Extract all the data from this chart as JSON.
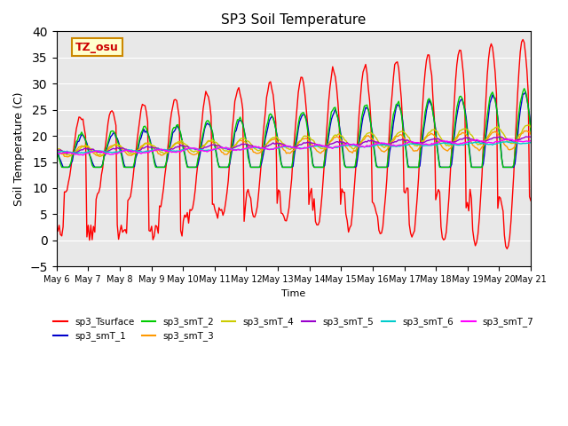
{
  "title": "SP3 Soil Temperature",
  "ylabel": "Soil Temperature (C)",
  "xlabel": "Time",
  "ylim": [
    -5,
    40
  ],
  "annotation": "TZ_osu",
  "bg_color": "#e8e8e8",
  "legend": [
    {
      "label": "sp3_Tsurface",
      "color": "#ff0000"
    },
    {
      "label": "sp3_smT_1",
      "color": "#0000cc"
    },
    {
      "label": "sp3_smT_2",
      "color": "#00cc00"
    },
    {
      "label": "sp3_smT_3",
      "color": "#ff9900"
    },
    {
      "label": "sp3_smT_4",
      "color": "#cccc00"
    },
    {
      "label": "sp3_smT_5",
      "color": "#9900cc"
    },
    {
      "label": "sp3_smT_6",
      "color": "#00cccc"
    },
    {
      "label": "sp3_smT_7",
      "color": "#ff00ff"
    }
  ],
  "xtick_labels": [
    "May 6",
    "May 7",
    "May 8",
    "May 9",
    "May 10",
    "May 11",
    "May 12",
    "May 13",
    "May 14",
    "May 15",
    "May 16",
    "May 17",
    "May 18",
    "May 19",
    "May 20",
    "May 21"
  ],
  "num_days": 15,
  "hours_per_day": 24
}
